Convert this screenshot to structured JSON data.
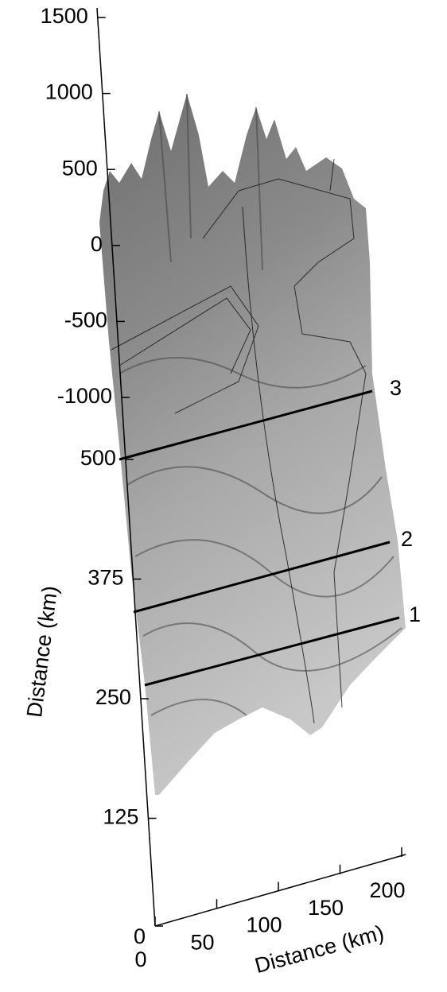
{
  "chart_data": {
    "type": "surface",
    "zlim": [
      -1000,
      1500
    ],
    "zticks": [
      1500,
      1000,
      500,
      0,
      -500,
      -1000
    ],
    "ylabel": "Distance (km)",
    "ylim": [
      0,
      500
    ],
    "yticks": [
      500,
      375,
      250,
      125,
      0
    ],
    "xlabel": "Distance (km)",
    "xlim": [
      0,
      200
    ],
    "xticks": [
      0,
      50,
      100,
      150,
      200
    ],
    "annotations": [
      "1",
      "2",
      "3"
    ]
  }
}
